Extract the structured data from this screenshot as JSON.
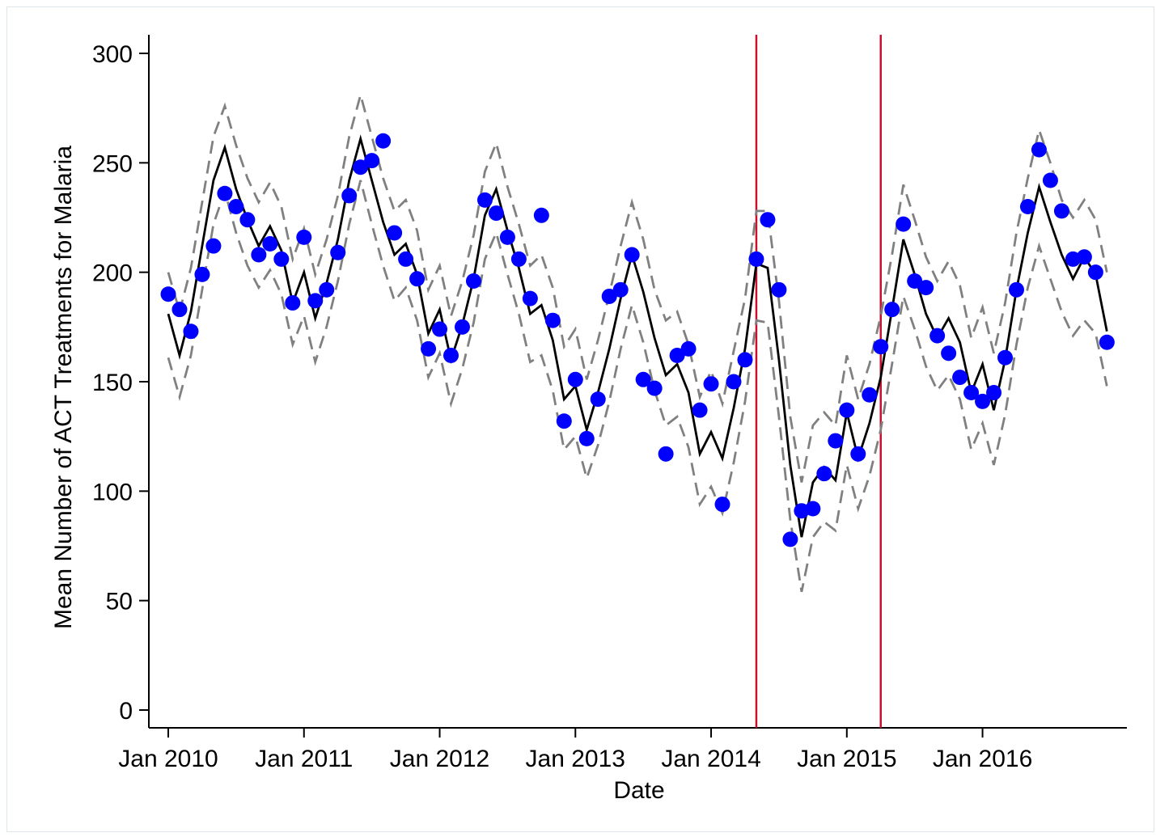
{
  "chart_data": {
    "type": "line",
    "xlabel": "Date",
    "ylabel": "Mean Number of ACT Treatments for Malaria",
    "x_tick_labels": [
      "Jan 2010",
      "Jan 2011",
      "Jan 2012",
      "Jan 2013",
      "Jan 2014",
      "Jan 2015",
      "Jan 2016"
    ],
    "y_ticks": [
      0,
      50,
      100,
      150,
      200,
      250,
      300
    ],
    "ylim": [
      -8,
      308
    ],
    "x_start": "2010-01",
    "x_end": "2016-12",
    "grid": false,
    "vertical_lines": [
      {
        "date": "2014-05",
        "color": "#c8102e"
      },
      {
        "date": "2015-04",
        "color": "#c8102e"
      }
    ],
    "series": [
      {
        "type": "scatter",
        "color": "#0000ff",
        "values": [
          190,
          183,
          173,
          199,
          212,
          236,
          230,
          224,
          208,
          213,
          206,
          186,
          216,
          187,
          192,
          209,
          235,
          248,
          251,
          260,
          218,
          206,
          197,
          165,
          174,
          162,
          175,
          196,
          233,
          227,
          216,
          206,
          188,
          226,
          178,
          132,
          151,
          124,
          142,
          189,
          192,
          208,
          151,
          147,
          117,
          162,
          165,
          137,
          149,
          94,
          150,
          160,
          206,
          224,
          192,
          78,
          91,
          92,
          108,
          123,
          137,
          117,
          144,
          166,
          183,
          222,
          196,
          193,
          171,
          163,
          152,
          145,
          141,
          145,
          161,
          192,
          230,
          256,
          242,
          228,
          206,
          207,
          200,
          168
        ]
      },
      {
        "type": "line",
        "color": "#000000",
        "values": [
          181,
          162,
          182,
          212,
          242,
          257,
          238,
          224,
          212,
          221,
          210,
          186,
          200,
          179,
          195,
          215,
          242,
          261,
          242,
          223,
          208,
          213,
          199,
          172,
          183,
          160,
          176,
          197,
          226,
          238,
          219,
          202,
          181,
          185,
          169,
          142,
          148,
          128,
          145,
          165,
          188,
          208,
          191,
          170,
          153,
          158,
          145,
          117,
          127,
          115,
          138,
          165,
          204,
          202,
          160,
          112,
          79,
          104,
          111,
          105,
          136,
          115,
          131,
          152,
          183,
          215,
          199,
          181,
          170,
          179,
          168,
          145,
          158,
          137,
          160,
          192,
          218,
          239,
          223,
          208,
          197,
          207,
          199,
          173
        ]
      },
      {
        "type": "line",
        "style": "dashed",
        "color": "#808080",
        "values": [
          200,
          182,
          202,
          232,
          262,
          276,
          258,
          243,
          232,
          241,
          230,
          206,
          220,
          199,
          215,
          235,
          262,
          281,
          262,
          243,
          228,
          233,
          219,
          192,
          203,
          180,
          196,
          217,
          246,
          259,
          239,
          222,
          203,
          208,
          193,
          166,
          174,
          151,
          169,
          190,
          212,
          232,
          215,
          192,
          178,
          182,
          167,
          143,
          155,
          140,
          164,
          188,
          228,
          228,
          187,
          134,
          104,
          130,
          136,
          130,
          162,
          142,
          158,
          180,
          208,
          240,
          224,
          207,
          196,
          205,
          194,
          170,
          184,
          163,
          186,
          218,
          243,
          265,
          250,
          233,
          225,
          233,
          224,
          200
        ]
      },
      {
        "type": "line",
        "style": "dashed",
        "color": "#808080",
        "values": [
          161,
          143,
          162,
          192,
          222,
          237,
          218,
          203,
          193,
          201,
          190,
          167,
          180,
          159,
          175,
          196,
          222,
          242,
          222,
          203,
          187,
          193,
          178,
          152,
          163,
          140,
          156,
          177,
          206,
          218,
          199,
          181,
          159,
          162,
          146,
          119,
          125,
          106,
          121,
          141,
          165,
          185,
          168,
          146,
          130,
          134,
          120,
          94,
          102,
          90,
          113,
          141,
          178,
          177,
          134,
          87,
          54,
          79,
          86,
          82,
          112,
          92,
          107,
          128,
          158,
          189,
          174,
          157,
          146,
          153,
          142,
          119,
          131,
          112,
          135,
          167,
          193,
          212,
          197,
          182,
          171,
          178,
          172,
          148
        ]
      }
    ]
  }
}
